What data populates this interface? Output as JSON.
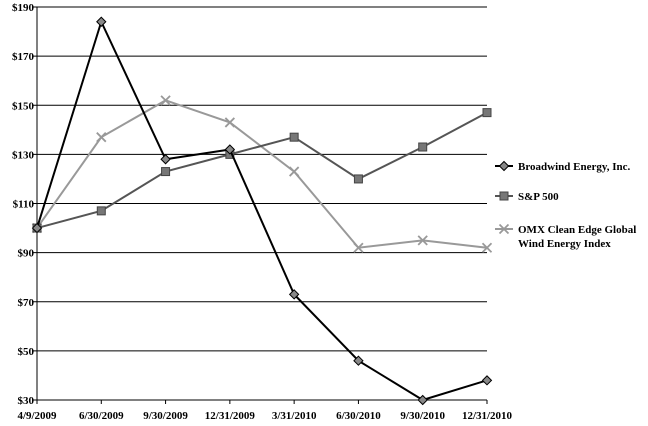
{
  "chart_data": {
    "type": "line",
    "title": "",
    "xlabel": "",
    "ylabel": "",
    "categories": [
      "4/9/2009",
      "6/30/2009",
      "9/30/2009",
      "12/31/2009",
      "3/31/2010",
      "6/30/2010",
      "9/30/2010",
      "12/31/2010"
    ],
    "y_ticks": [
      "$30",
      "$50",
      "$70",
      "$90",
      "$110",
      "$130",
      "$150",
      "$170",
      "$190"
    ],
    "y_tick_values": [
      30,
      50,
      70,
      90,
      110,
      130,
      150,
      170,
      190
    ],
    "ylim": [
      30,
      190
    ],
    "grid": "horizontal",
    "legend_position": "right",
    "series": [
      {
        "name": "Broadwind Energy, Inc.",
        "values": [
          100,
          184,
          128,
          132,
          73,
          46,
          30,
          38
        ],
        "color": "#000000",
        "marker": "diamond"
      },
      {
        "name": "S&P 500",
        "values": [
          100,
          107,
          123,
          130,
          137,
          120,
          133,
          147
        ],
        "color": "#555555",
        "marker": "square"
      },
      {
        "name": "OMX Clean Edge Global Wind Energy Index",
        "legend_lines": [
          "OMX Clean Edge Global",
          "Wind Energy Index"
        ],
        "values": [
          100,
          137,
          152,
          143,
          123,
          92,
          95,
          92
        ],
        "color": "#999999",
        "marker": "x"
      }
    ]
  }
}
